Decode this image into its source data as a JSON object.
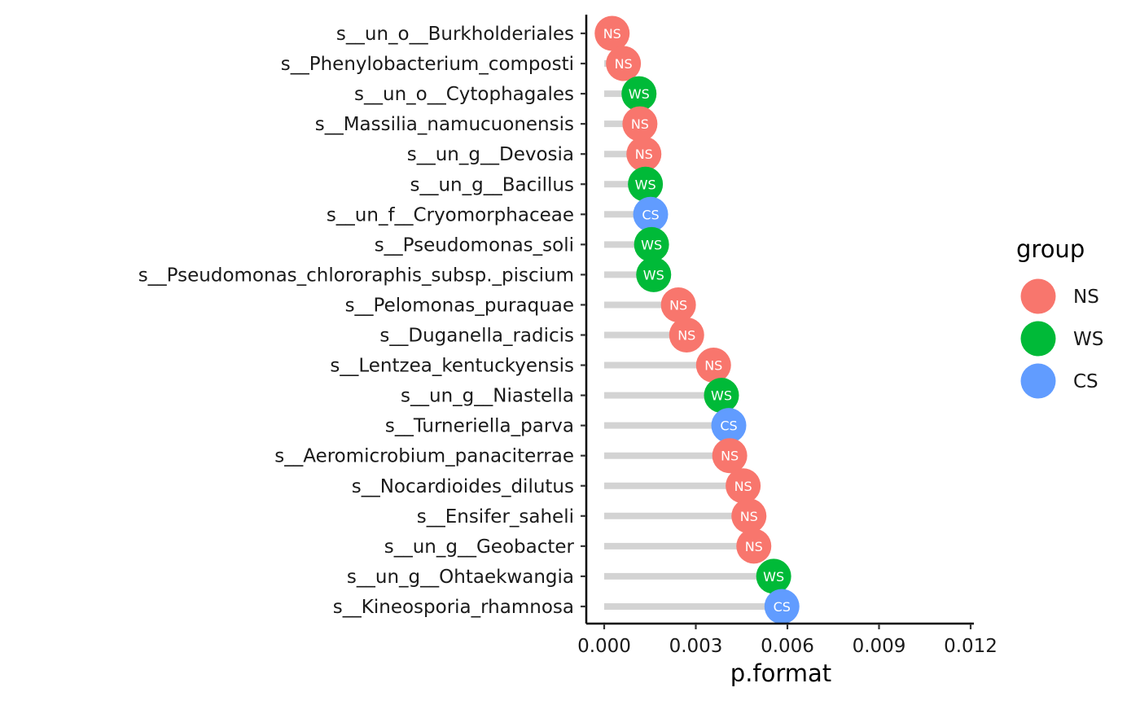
{
  "chart_data": {
    "type": "lollipop",
    "xlabel": "p.format",
    "ylabel": "",
    "xlim": [
      0,
      0.012
    ],
    "x_ticks": [
      "0.000",
      "0.003",
      "0.006",
      "0.009",
      "0.012"
    ],
    "x_tick_values": [
      0,
      0.003,
      0.006,
      0.009,
      0.012
    ],
    "categories": [
      "s__un_o__Burkholderiales",
      "s__Phenylobacterium_composti",
      "s__un_o__Cytophagales",
      "s__Massilia_namucuonensis",
      "s__un_g__Devosia",
      "s__un_g__Bacillus",
      "s__un_f__Cryomorphaceae",
      "s__Pseudomonas_soli",
      "s__Pseudomonas_chlororaphis_subsp._piscium",
      "s__Pelomonas_puraquae",
      "s__Duganella_radicis",
      "s__Lentzea_kentuckyensis",
      "s__un_g__Niastella",
      "s__Turneriella_parva",
      "s__Aeromicrobium_panaciterrae",
      "s__Nocardioides_dilutus",
      "s__Ensifer_saheli",
      "s__un_g__Geobacter",
      "s__un_g__Ohtaekwangia",
      "s__Kineosporia_rhamnosa"
    ],
    "values": [
      0.00026,
      0.00063,
      0.00114,
      0.00117,
      0.0013,
      0.00135,
      0.00152,
      0.00155,
      0.00162,
      0.00243,
      0.0027,
      0.00358,
      0.00384,
      0.00408,
      0.00411,
      0.00455,
      0.00474,
      0.0049,
      0.00555,
      0.00582
    ],
    "groups": [
      "NS",
      "NS",
      "WS",
      "NS",
      "NS",
      "WS",
      "CS",
      "WS",
      "WS",
      "NS",
      "NS",
      "NS",
      "WS",
      "CS",
      "NS",
      "NS",
      "NS",
      "NS",
      "WS",
      "CS"
    ],
    "legend": {
      "title": "group",
      "placement": "right",
      "entries": [
        {
          "name": "NS",
          "color": "#F8766D"
        },
        {
          "name": "WS",
          "color": "#00BA38"
        },
        {
          "name": "CS",
          "color": "#619CFF"
        }
      ]
    },
    "stem_color": "#d3d3d3",
    "grid": false
  }
}
